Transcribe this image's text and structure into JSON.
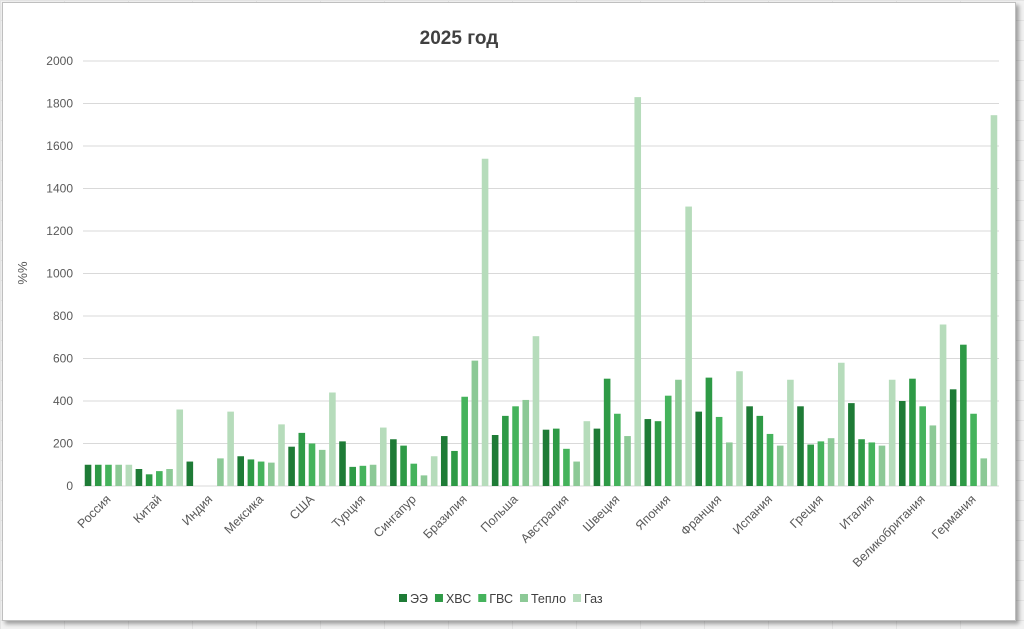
{
  "chart_data": {
    "type": "bar",
    "title": "2025 год",
    "ylabel": "%%",
    "ylim": [
      0,
      2000
    ],
    "yticks": [
      0,
      200,
      400,
      600,
      800,
      1000,
      1200,
      1400,
      1600,
      1800,
      2000
    ],
    "grid": true,
    "legend_position": "bottom",
    "categories": [
      "Россия",
      "Китай",
      "Индия",
      "Мексика",
      "США",
      "Турция",
      "Сингапур",
      "Бразилия",
      "Польша",
      "Австралия",
      "Швеция",
      "Япония",
      "Франция",
      "Испания",
      "Греция",
      "Италия",
      "Великобритания",
      "Германия"
    ],
    "series": [
      {
        "name": "ЭЭ",
        "color": "#1e7b36",
        "values": [
          100,
          80,
          115,
          140,
          185,
          210,
          220,
          235,
          240,
          265,
          270,
          315,
          350,
          375,
          375,
          390,
          400,
          455
        ]
      },
      {
        "name": "ХВС",
        "color": "#2e9a46",
        "values": [
          100,
          55,
          null,
          125,
          250,
          90,
          190,
          165,
          330,
          270,
          505,
          305,
          510,
          330,
          195,
          220,
          505,
          665
        ]
      },
      {
        "name": "ГВС",
        "color": "#45b35c",
        "values": [
          100,
          70,
          null,
          115,
          200,
          95,
          105,
          420,
          375,
          175,
          340,
          425,
          325,
          245,
          210,
          205,
          375,
          340
        ]
      },
      {
        "name": "Тепло",
        "color": "#8cc996",
        "values": [
          100,
          80,
          130,
          110,
          170,
          100,
          50,
          590,
          405,
          115,
          235,
          500,
          205,
          190,
          225,
          190,
          285,
          130
        ]
      },
      {
        "name": "Газ",
        "color": "#b6dcbb",
        "values": [
          100,
          360,
          350,
          290,
          440,
          275,
          140,
          1540,
          705,
          305,
          1830,
          1315,
          540,
          500,
          580,
          500,
          760,
          1745
        ]
      }
    ]
  }
}
